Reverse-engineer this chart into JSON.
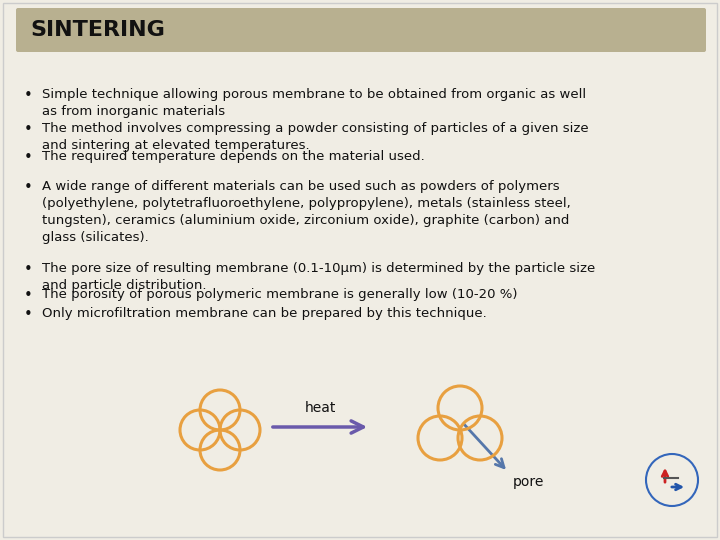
{
  "title": "SINTERING",
  "title_bg_color": "#b8b090",
  "slide_bg_color": "#f0ede4",
  "title_text_color": "#111111",
  "bullet_text_color": "#111111",
  "circle_color": "#e8a040",
  "arrow_color": "#6a5aab",
  "pore_arrow_color": "#5577aa",
  "font_size_title": 16,
  "font_size_bullet": 9.5,
  "bullets": [
    "Simple technique allowing porous membrane to be obtained from organic as well as from inorganic materials",
    "The method involves compressing a powder consisting of particles of a given size and sintering at elevated temperatures.",
    "The required temperature depends on the material used.",
    "A wide range of different materials can be used such as powders of polymers (polyethylene, polytetrafluoroethylene, polypropylene), metals (stainless steel, tungsten), ceramics (aluminium oxide, zirconium oxide), graphite (carbon) and glass (silicates).",
    "The pore size of resulting membrane (0.1-10μm) is determined by the particle size and particle distribution.",
    "The porosity of porous polymeric membrane is generally low (10-20 %)",
    "Only microfiltration membrane can be prepared by this technique."
  ],
  "logo_color_red": "#cc2222",
  "logo_color_blue": "#2255aa"
}
